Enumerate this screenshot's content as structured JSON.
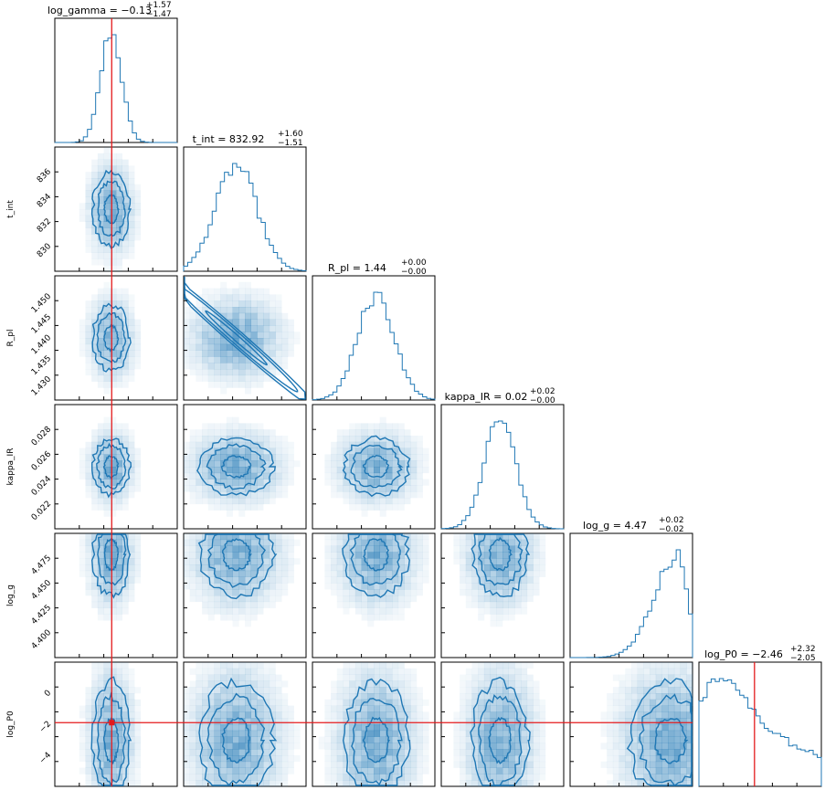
{
  "chart_data": {
    "type": "corner",
    "parameters": [
      "log_gamma",
      "t_int",
      "R_pl",
      "kappa_IR",
      "log_g",
      "log_P0"
    ],
    "titles": [
      {
        "name": "log_gamma",
        "median": "−0.13",
        "plus": "+1.57",
        "minus": "−1.47"
      },
      {
        "name": "t_int",
        "median": "832.92",
        "plus": "+1.60",
        "minus": "−1.51"
      },
      {
        "name": "R_pl",
        "median": "1.44",
        "plus": "+0.00",
        "minus": "−0.00"
      },
      {
        "name": "kappa_IR",
        "median": "0.02",
        "plus": "+0.02",
        "minus": "−0.00"
      },
      {
        "name": "log_g",
        "median": "4.47",
        "plus": "+0.02",
        "minus": "−0.02"
      },
      {
        "name": "log_P0",
        "median": "−2.46",
        "plus": "+2.32",
        "minus": "−2.05"
      }
    ],
    "ranges": {
      "log_gamma": [
        -2.5,
        2.6
      ],
      "t_int": [
        828.5,
        837.3
      ],
      "R_pl": [
        1.4285,
        1.4515
      ],
      "kappa_IR": [
        0.021,
        0.0287
      ],
      "log_g": [
        4.393,
        4.49
      ],
      "log_P0": [
        -6.0,
        1.8
      ]
    },
    "ticks": {
      "t_int": [
        "830",
        "832",
        "834",
        "836"
      ],
      "R_pl": [
        "1.430",
        "1.435",
        "1.440",
        "1.445",
        "1.450"
      ],
      "kappa_IR": [
        "0.022",
        "0.024",
        "0.026",
        "0.028"
      ],
      "log_g": [
        "4.400",
        "4.425",
        "4.450",
        "4.475"
      ],
      "log_P0": [
        "−4",
        "−2",
        "0"
      ]
    },
    "truths": {
      "log_gamma": -0.13,
      "log_P0": -2.0
    },
    "colors": {
      "contour": "#1f77b4",
      "hist": "#1f77b4",
      "density": "#1f77b4",
      "truth": "#e41a1c"
    }
  }
}
